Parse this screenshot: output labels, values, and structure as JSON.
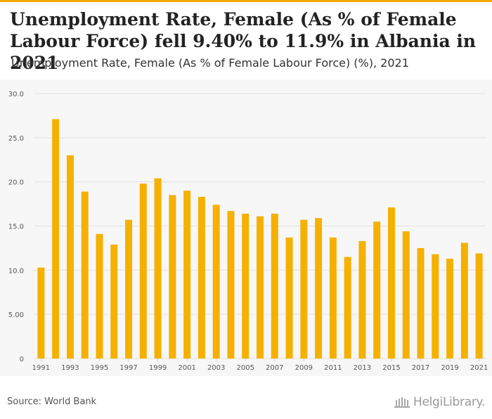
{
  "header": {
    "title": "Unemployment Rate, Female (As % of Female Labour Force) fell 9.40% to 11.9% in Albania in 2021",
    "subtitle": "Unemployment Rate, Female (As % of Female Labour Force) (%), 2021"
  },
  "footer": {
    "source": "Source: World Bank",
    "logo_text": "HelgiLibrary."
  },
  "colors": {
    "bar": "#f5b000",
    "accent": "#f5a800",
    "grid": "#e2e2e2",
    "plot_background": "#f7f7f7"
  },
  "chart_data": {
    "type": "bar",
    "title": "",
    "xlabel": "",
    "ylabel": "",
    "ylim": [
      0,
      30
    ],
    "grid": true,
    "y_ticks": [
      0,
      5,
      10,
      15,
      20,
      25,
      30
    ],
    "y_tick_labels": [
      "0",
      "5.00",
      "10.0",
      "15.0",
      "20.0",
      "25.0",
      "30.0"
    ],
    "categories": [
      "1991",
      "1992",
      "1993",
      "1994",
      "1995",
      "1996",
      "1997",
      "1998",
      "1999",
      "2000",
      "2001",
      "2002",
      "2003",
      "2004",
      "2005",
      "2006",
      "2007",
      "2008",
      "2009",
      "2010",
      "2011",
      "2012",
      "2013",
      "2014",
      "2015",
      "2016",
      "2017",
      "2018",
      "2019",
      "2020",
      "2021"
    ],
    "x_tick_labels": [
      "1991",
      "1993",
      "1995",
      "1997",
      "1999",
      "2001",
      "2003",
      "2005",
      "2007",
      "2009",
      "2011",
      "2013",
      "2015",
      "2017",
      "2019",
      "2021"
    ],
    "values": [
      10.3,
      27.1,
      23.0,
      18.9,
      14.1,
      12.9,
      15.7,
      19.8,
      20.4,
      18.5,
      19.0,
      18.3,
      17.4,
      16.7,
      16.4,
      16.1,
      16.4,
      13.7,
      15.7,
      15.9,
      13.7,
      11.5,
      13.3,
      15.5,
      17.1,
      14.4,
      12.5,
      11.8,
      11.3,
      13.1,
      11.9
    ]
  }
}
